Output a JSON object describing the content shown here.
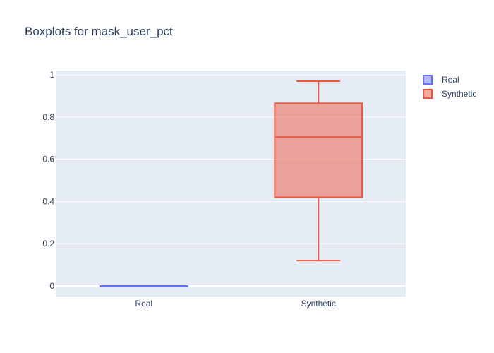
{
  "chart_data": {
    "type": "box",
    "title": "Boxplots for mask_user_pct",
    "xlabel": "",
    "ylabel": "",
    "categories": [
      "Real",
      "Synthetic"
    ],
    "ylim": [
      -0.05,
      1.02
    ],
    "yticks": [
      0,
      0.2,
      0.4,
      0.6,
      0.8,
      1
    ],
    "ytick_labels": [
      "0",
      "0.2",
      "0.4",
      "0.6",
      "0.8",
      "1"
    ],
    "grid": true,
    "legend_position": "top-right",
    "series": [
      {
        "name": "Real",
        "color": "#636efa",
        "fill": "rgba(99,110,250,0.5)",
        "min": 0,
        "q1": 0,
        "median": 0,
        "q3": 0,
        "max": 0
      },
      {
        "name": "Synthetic",
        "color": "#ef553b",
        "fill": "rgba(239,85,59,0.5)",
        "min": 0.12,
        "q1": 0.42,
        "median": 0.705,
        "q3": 0.865,
        "max": 0.97
      }
    ]
  }
}
